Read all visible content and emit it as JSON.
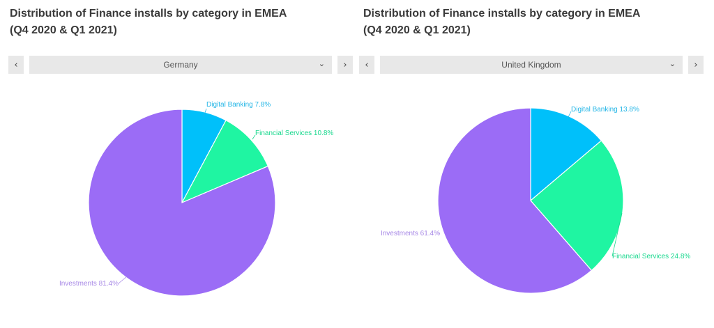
{
  "colors": {
    "digital_banking": "#00c0fa",
    "financial_services": "#1ff5a2",
    "investments": "#9b6cf6",
    "investments_label": "#a788e6",
    "digital_label": "#22b5e6",
    "financial_label": "#19d88e"
  },
  "panels": [
    {
      "title_line1": "Distribution of Finance installs by category in EMEA",
      "title_line2": "(Q4 2020 & Q1 2021)",
      "prev_label": "‹",
      "next_label": "›",
      "select_value": "Germany",
      "select_icon": "chevron-down-icon"
    },
    {
      "title_line1": "Distribution of Finance installs by category in EMEA",
      "title_line2": "(Q4 2020 & Q1 2021)",
      "prev_label": "‹",
      "next_label": "›",
      "select_value": "United Kingdom",
      "select_icon": "chevron-down-icon"
    }
  ],
  "chart_data": [
    {
      "type": "pie",
      "title": "Distribution of Finance installs by category in EMEA (Q4 2020 & Q1 2021)",
      "filter": "Germany",
      "slices": [
        {
          "name": "Digital Banking",
          "value": 7.8,
          "label": "Digital Banking 7.8%"
        },
        {
          "name": "Financial Services",
          "value": 10.8,
          "label": "Financial Services 10.8%"
        },
        {
          "name": "Investments",
          "value": 81.4,
          "label": "Investments 81.4%"
        }
      ],
      "start": "12 o'clock",
      "direction": "clockwise",
      "legend": "none"
    },
    {
      "type": "pie",
      "title": "Distribution of Finance installs by category in EMEA (Q4 2020 & Q1 2021)",
      "filter": "United Kingdom",
      "slices": [
        {
          "name": "Digital Banking",
          "value": 13.8,
          "label": "Digital Banking 13.8%"
        },
        {
          "name": "Financial Services",
          "value": 24.8,
          "label": "Financial Services 24.8%"
        },
        {
          "name": "Investments",
          "value": 61.4,
          "label": "Investments 61.4%"
        }
      ],
      "start": "12 o'clock",
      "direction": "clockwise",
      "legend": "none"
    }
  ]
}
